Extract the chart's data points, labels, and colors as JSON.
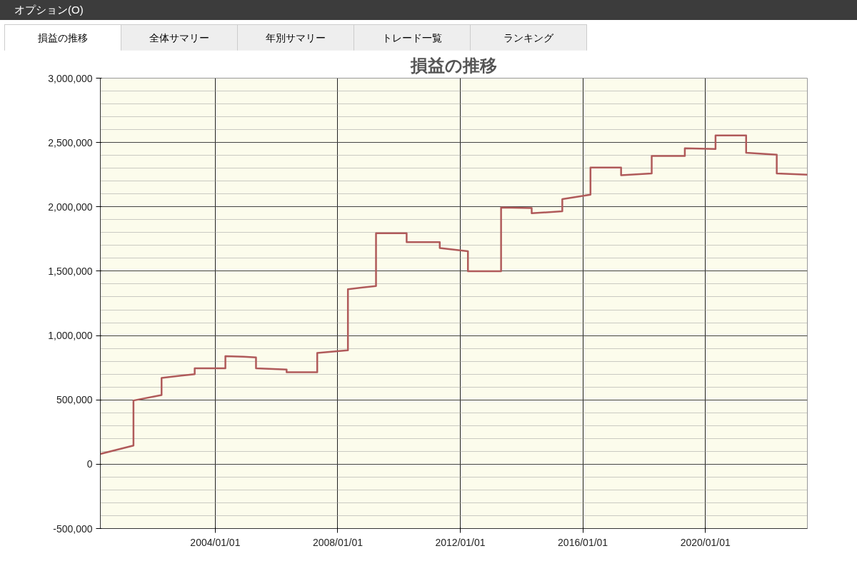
{
  "chart_data": {
    "type": "line",
    "title": "損益の推移",
    "annotations": [
      "オプション(O)",
      "損益の推移",
      "全体サマリー",
      "年別サマリー",
      "トレード一覧",
      "ランキング"
    ],
    "x": [
      "2000-04",
      "2001-05",
      "2001-05",
      "2002-04",
      "2002-04",
      "2003-05",
      "2003-05",
      "2004-05",
      "2004-05",
      "2004-12",
      "2005-05",
      "2005-05",
      "2006-05",
      "2006-05",
      "2007-05",
      "2007-05",
      "2008-05",
      "2008-05",
      "2009-04",
      "2009-04",
      "2010-04",
      "2010-04",
      "2011-05",
      "2011-05",
      "2012-04",
      "2012-04",
      "2013-05",
      "2013-05",
      "2014-05",
      "2014-05",
      "2015-05",
      "2015-05",
      "2016-04",
      "2016-04",
      "2017-04",
      "2017-04",
      "2018-04",
      "2018-04",
      "2019-05",
      "2019-05",
      "2020-05",
      "2020-05",
      "2021-05",
      "2021-05",
      "2022-05",
      "2022-05",
      "2023-05"
    ],
    "series": [
      {
        "color": "#b05a5a",
        "values": [
          80000,
          145000,
          495000,
          537000,
          670000,
          700000,
          745000,
          745000,
          840000,
          835000,
          830000,
          745000,
          735000,
          715000,
          715000,
          865000,
          885000,
          1360000,
          1385000,
          1795000,
          1795000,
          1725000,
          1725000,
          1680000,
          1655000,
          1500000,
          1500000,
          1995000,
          1990000,
          1950000,
          1965000,
          2060000,
          2095000,
          2305000,
          2305000,
          2245000,
          2260000,
          2395000,
          2395000,
          2455000,
          2450000,
          2555000,
          2555000,
          2420000,
          2405000,
          2260000,
          2250000
        ]
      }
    ],
    "xlim": [
      "2000-04",
      "2023-05"
    ],
    "xticks": [
      {
        "value": "2004-01-01",
        "label": "2004/01/01"
      },
      {
        "value": "2008-01-01",
        "label": "2008/01/01"
      },
      {
        "value": "2012-01-01",
        "label": "2012/01/01"
      },
      {
        "value": "2016-01-01",
        "label": "2016/01/01"
      },
      {
        "value": "2020-01-01",
        "label": "2020/01/01"
      }
    ],
    "ylim": [
      -500000,
      3000000
    ],
    "yticks": [
      {
        "value": -500000,
        "label": "-500,000"
      },
      {
        "value": 0,
        "label": "0"
      },
      {
        "value": 500000,
        "label": "500,000"
      },
      {
        "value": 1000000,
        "label": "1,000,000"
      },
      {
        "value": 1500000,
        "label": "1,500,000"
      },
      {
        "value": 2000000,
        "label": "2,000,000"
      },
      {
        "value": 2500000,
        "label": "2,500,000"
      },
      {
        "value": 3000000,
        "label": "3,000,000"
      }
    ],
    "grid": true,
    "marker": "none",
    "line_style": "solid"
  }
}
